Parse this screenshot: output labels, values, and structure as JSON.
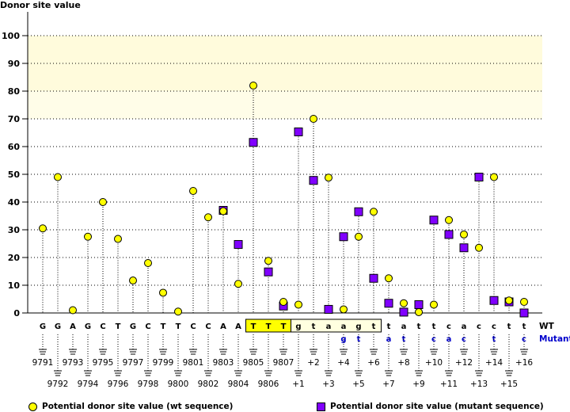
{
  "chart_data": {
    "type": "scatter",
    "title": "Donor site value",
    "xlabel": "",
    "ylabel": "Donor site value",
    "ylim": [
      0,
      100
    ],
    "yticks": [
      0,
      10,
      20,
      30,
      40,
      50,
      60,
      70,
      80,
      90,
      100
    ],
    "grid": true,
    "highlight_bands": [
      {
        "from": 80,
        "to": 100,
        "color": "#fffbdc"
      },
      {
        "from": 70,
        "to": 80,
        "color": "#fffde8"
      }
    ],
    "positions": [
      "9791",
      "9792",
      "9793",
      "9794",
      "9795",
      "9796",
      "9797",
      "9798",
      "9799",
      "9800",
      "9801",
      "9802",
      "9803",
      "9804",
      "9805",
      "9806",
      "9807",
      "+1",
      "+2",
      "+3",
      "+4",
      "+5",
      "+6",
      "+7",
      "+8",
      "+9",
      "+10",
      "+11",
      "+12",
      "+13",
      "+14",
      "+15",
      "+16"
    ],
    "wt_sequence": [
      "G",
      "G",
      "A",
      "G",
      "C",
      "T",
      "G",
      "C",
      "T",
      "T",
      "C",
      "C",
      "A",
      "A",
      "T",
      "T",
      "T",
      "g",
      "t",
      "a",
      "a",
      "g",
      "t",
      "t",
      "a",
      "t",
      "t",
      "c",
      "a",
      "c",
      "c",
      "t",
      "t"
    ],
    "mutant_sequence": [
      "",
      "",
      "",
      "",
      "",
      "",
      "",
      "",
      "",
      "",
      "",
      "",
      "",
      "",
      "",
      "",
      "",
      "",
      "",
      "",
      "g",
      "t",
      "",
      "a",
      "t",
      "",
      "c",
      "a",
      "c",
      "",
      "t",
      "",
      "c"
    ],
    "exon_highlight": {
      "start": 14,
      "end": 16,
      "color": "#ffff00"
    },
    "intron_highlight": {
      "start": 17,
      "end": 22,
      "color": "#ffffe0"
    },
    "series": [
      {
        "name": "Potential donor site value (wt sequence)",
        "marker": "circle",
        "color": "#ffff00",
        "values": [
          30.5,
          49,
          1,
          27.5,
          40,
          26.7,
          11.7,
          18,
          7.3,
          0.5,
          44,
          34.5,
          36.7,
          10.5,
          82,
          18.8,
          4,
          3,
          70,
          48.8,
          1.3,
          27.5,
          36.5,
          12.5,
          3.5,
          0.3,
          3,
          33.5,
          28.3,
          23.5,
          49,
          4.5,
          4
        ]
      },
      {
        "name": "Potential donor site value (mutant sequence)",
        "marker": "square",
        "color": "#8000ff",
        "values": [
          null,
          null,
          null,
          null,
          null,
          null,
          null,
          null,
          null,
          null,
          null,
          null,
          37,
          24.7,
          61.5,
          14.8,
          2.5,
          65.3,
          47.8,
          1.3,
          27.5,
          36.5,
          12.5,
          3.5,
          0.3,
          3,
          33.5,
          28.3,
          23.5,
          49,
          4.5,
          4,
          0
        ]
      }
    ],
    "row_labels": {
      "wt": "WT",
      "mutant": "Mutant"
    },
    "legend_position": "bottom"
  },
  "legend": {
    "wt": "Potential donor site value (wt sequence)",
    "mutant": "Potential donor site value (mutant sequence)"
  }
}
